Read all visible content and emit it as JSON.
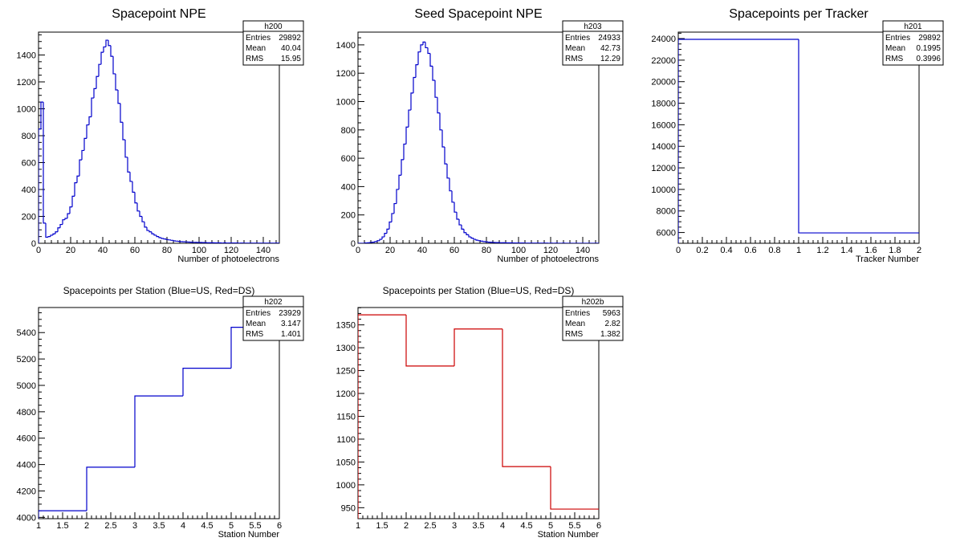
{
  "chart_data": [
    {
      "id": "h200",
      "type": "histogram",
      "title": "Spacepoint NPE",
      "xlabel": "Number of photoelectrons",
      "ylabel": "",
      "xlim": [
        0,
        150
      ],
      "ylim": [
        0,
        1570
      ],
      "xticks": [
        "0",
        "20",
        "40",
        "60",
        "80",
        "100",
        "120",
        "140"
      ],
      "yticks": [
        "0",
        "200",
        "400",
        "600",
        "800",
        "1000",
        "1200",
        "1400"
      ],
      "line_color": "#0000cc",
      "stats": {
        "name": "h200",
        "rows": [
          {
            "label": "Entries",
            "value": "29892"
          },
          {
            "label": "Mean",
            "value": "40.04"
          },
          {
            "label": "RMS",
            "value": "15.95"
          }
        ]
      },
      "bin_width": 1.5,
      "values": [
        850,
        1050,
        150,
        45,
        50,
        60,
        70,
        85,
        115,
        140,
        175,
        185,
        220,
        270,
        350,
        450,
        500,
        620,
        690,
        780,
        880,
        940,
        1080,
        1150,
        1240,
        1330,
        1420,
        1460,
        1510,
        1470,
        1390,
        1260,
        1140,
        1040,
        900,
        770,
        640,
        530,
        460,
        380,
        300,
        240,
        200,
        160,
        120,
        95,
        85,
        70,
        60,
        50,
        42,
        36,
        32,
        28,
        25,
        22,
        18,
        16,
        14,
        12,
        11,
        10,
        9,
        8,
        7,
        7,
        6,
        6,
        5,
        5,
        4,
        4,
        4,
        3,
        3,
        3,
        2,
        3,
        2,
        2,
        2,
        2,
        2,
        1,
        2,
        1,
        1,
        1,
        1,
        1,
        1,
        1,
        1,
        1,
        1,
        1,
        1,
        1,
        1,
        1
      ]
    },
    {
      "id": "h203",
      "type": "histogram",
      "title": "Seed Spacepoint NPE",
      "xlabel": "Number of photoelectrons",
      "ylabel": "",
      "xlim": [
        0,
        150
      ],
      "ylim": [
        0,
        1490
      ],
      "xticks": [
        "0",
        "20",
        "40",
        "60",
        "80",
        "100",
        "120",
        "140"
      ],
      "yticks": [
        "0",
        "200",
        "400",
        "600",
        "800",
        "1000",
        "1200",
        "1400"
      ],
      "line_color": "#0000cc",
      "stats": {
        "name": "h203",
        "rows": [
          {
            "label": "Entries",
            "value": "24933"
          },
          {
            "label": "Mean",
            "value": "42.73"
          },
          {
            "label": "RMS",
            "value": "12.29"
          }
        ]
      },
      "bin_width": 1.5,
      "values": [
        0,
        0,
        0,
        2,
        4,
        6,
        8,
        12,
        18,
        28,
        45,
        70,
        100,
        150,
        210,
        280,
        380,
        480,
        590,
        700,
        820,
        940,
        1060,
        1170,
        1260,
        1350,
        1400,
        1420,
        1380,
        1340,
        1250,
        1150,
        1030,
        920,
        800,
        680,
        560,
        460,
        370,
        290,
        220,
        170,
        130,
        100,
        75,
        60,
        45,
        36,
        28,
        22,
        18,
        15,
        12,
        10,
        8,
        7,
        6,
        5,
        5,
        4,
        4,
        3,
        3,
        3,
        2,
        2,
        2,
        2,
        2,
        1,
        1,
        1,
        1,
        1,
        1,
        1,
        1,
        1,
        1,
        0,
        1,
        0,
        1,
        0,
        0,
        1,
        0,
        0,
        0,
        0,
        0,
        0,
        0,
        0,
        0,
        0,
        0,
        0,
        0,
        0
      ]
    },
    {
      "id": "h201",
      "type": "histogram",
      "title": "Spacepoints per Tracker",
      "xlabel": "Tracker Number",
      "ylabel": "",
      "xlim": [
        0,
        2
      ],
      "ylim": [
        5000,
        24600
      ],
      "xticks": [
        "0",
        "0.2",
        "0.4",
        "0.6",
        "0.8",
        "1",
        "1.2",
        "1.4",
        "1.6",
        "1.8",
        "2"
      ],
      "yticks": [
        "6000",
        "8000",
        "10000",
        "12000",
        "14000",
        "16000",
        "18000",
        "20000",
        "22000",
        "24000"
      ],
      "line_color": "#0000cc",
      "stats": {
        "name": "h201",
        "rows": [
          {
            "label": "Entries",
            "value": "29892"
          },
          {
            "label": "Mean",
            "value": "0.1995"
          },
          {
            "label": "RMS",
            "value": "0.3996"
          }
        ]
      },
      "bin_width": 1,
      "values": [
        23929,
        5963
      ]
    },
    {
      "id": "h202",
      "type": "histogram",
      "title": "Spacepoints per Station (Blue=US, Red=DS)",
      "xlabel": "Station Number",
      "ylabel": "",
      "xlim": [
        1,
        6
      ],
      "ylim": [
        3990,
        5590
      ],
      "xticks": [
        "1",
        "1.5",
        "2",
        "2.5",
        "3",
        "3.5",
        "4",
        "4.5",
        "5",
        "5.5",
        "6"
      ],
      "yticks": [
        "4000",
        "4200",
        "4400",
        "4600",
        "4800",
        "5000",
        "5200",
        "5400"
      ],
      "line_color": "#0000cc",
      "stats": {
        "name": "h202",
        "rows": [
          {
            "label": "Entries",
            "value": "23929"
          },
          {
            "label": "Mean",
            "value": "3.147"
          },
          {
            "label": "RMS",
            "value": "1.401"
          }
        ]
      },
      "bin_width": 1,
      "values": [
        4050,
        4380,
        4920,
        5130,
        5440
      ]
    },
    {
      "id": "h202b",
      "type": "histogram",
      "title": "Spacepoints per Station (Blue=US, Red=DS)",
      "xlabel": "Station Number",
      "ylabel": "",
      "xlim": [
        1,
        6
      ],
      "ylim": [
        926,
        1388
      ],
      "xticks": [
        "1",
        "1.5",
        "2",
        "2.5",
        "3",
        "3.5",
        "4",
        "4.5",
        "5",
        "5.5",
        "6"
      ],
      "yticks": [
        "950",
        "1000",
        "1050",
        "1100",
        "1150",
        "1200",
        "1250",
        "1300",
        "1350"
      ],
      "line_color": "#cc0000",
      "stats": {
        "name": "h202b",
        "rows": [
          {
            "label": "Entries",
            "value": "5963"
          },
          {
            "label": "Mean",
            "value": "2.82"
          },
          {
            "label": "RMS",
            "value": "1.382"
          }
        ]
      },
      "bin_width": 1,
      "values": [
        1372,
        1260,
        1341,
        1040,
        947
      ]
    }
  ]
}
